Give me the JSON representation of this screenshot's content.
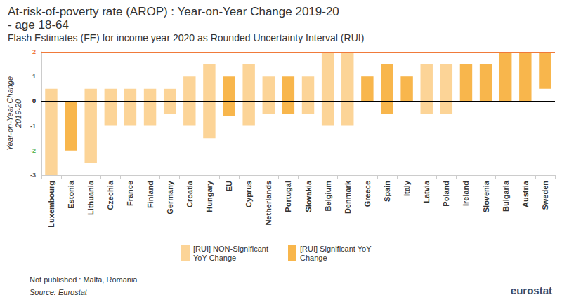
{
  "chart_data": {
    "type": "range_bar",
    "title": "At-risk-of-poverty rate (AROP) : Year-on-Year Change 2019-20\n- age 18-64",
    "subtitle": "Flash Estimates (FE) for income year 2020 as Rounded Uncertainty Interval (RUI)",
    "y_label": "Year-on-Year Change\n2019-20",
    "categories": [
      "Luxembourg",
      "Estonia",
      "Lithuania",
      "Czechia",
      "France",
      "Finland",
      "Germany",
      "Croatia",
      "Hungary",
      "EU",
      "Cyprus",
      "Netherlands",
      "Portugal",
      "Slovakia",
      "Belgium",
      "Denmark",
      "Greece",
      "Spain",
      "Italy",
      "Latvia",
      "Poland",
      "Ireland",
      "Slovenia",
      "Bulgaria",
      "Austria",
      "Sweden"
    ],
    "series": [
      {
        "name": "[RUI] NON-Significant YoY Change",
        "color": "#fcd497",
        "values": [
          [
            -3,
            0.5
          ],
          null,
          [
            -2.5,
            0.5
          ],
          [
            -1,
            0.5
          ],
          [
            -1,
            0.5
          ],
          [
            -1,
            0.5
          ],
          [
            -0.5,
            0.5
          ],
          [
            -1,
            1
          ],
          [
            -1.5,
            1.5
          ],
          null,
          [
            -1,
            1.5
          ],
          [
            -0.5,
            1
          ],
          null,
          [
            -0.5,
            1
          ],
          [
            -1,
            2
          ],
          [
            -1,
            2
          ],
          null,
          null,
          null,
          [
            -0.5,
            1.5
          ],
          [
            -0.5,
            1.5
          ],
          null,
          null,
          null,
          null,
          null
        ]
      },
      {
        "name": "[RUI] Significant YoY Change",
        "color": "#f8b64c",
        "values": [
          null,
          [
            -2,
            0
          ],
          null,
          null,
          null,
          null,
          null,
          null,
          null,
          [
            -0.6,
            1
          ],
          null,
          null,
          [
            -0.5,
            1
          ],
          null,
          null,
          null,
          [
            0,
            1
          ],
          [
            -0.5,
            1.5
          ],
          [
            0,
            1
          ],
          null,
          null,
          [
            0,
            1.5
          ],
          [
            0,
            1.5
          ],
          [
            0,
            2
          ],
          [
            0,
            2
          ],
          [
            0.5,
            2
          ]
        ]
      }
    ],
    "ylim": [
      -3,
      2
    ],
    "yticks": [
      -3,
      -2,
      -1,
      0,
      1,
      2
    ],
    "reference_lines": [
      {
        "value": 2,
        "color": "#f07a3a"
      },
      {
        "value": 0,
        "color": "#000000"
      },
      {
        "value": -2,
        "color": "#5cb85c"
      }
    ],
    "grid": false,
    "legend": "bottom",
    "notes": [
      "Not published : Malta, Romania"
    ],
    "source": "Source: Eurostat",
    "logo": "eurostat"
  }
}
